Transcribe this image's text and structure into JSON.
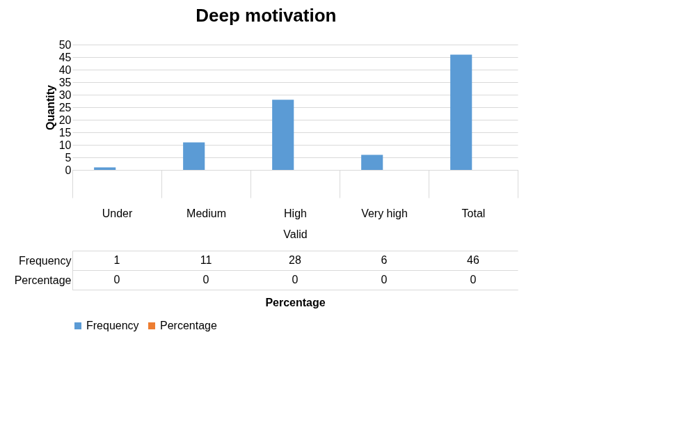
{
  "chart_data": {
    "type": "bar",
    "title": "Deep motivation",
    "ylabel": "Quantity",
    "categories": [
      "Under",
      "Medium",
      "High",
      "Very high",
      "Total"
    ],
    "series": [
      {
        "name": "Frequency",
        "color": "#5b9bd5",
        "values": [
          1,
          11,
          28,
          6,
          46
        ]
      },
      {
        "name": "Percentage",
        "color": "#ed7d31",
        "values": [
          0,
          0,
          0,
          0,
          0
        ]
      }
    ],
    "annotations": [
      "Valid",
      "Percentage"
    ],
    "ylim": [
      0,
      50
    ],
    "yticks": [
      0,
      5,
      10,
      15,
      20,
      25,
      30,
      35,
      40,
      45,
      50
    ],
    "grid": "y",
    "legend": "bottom",
    "data_labels": true
  }
}
